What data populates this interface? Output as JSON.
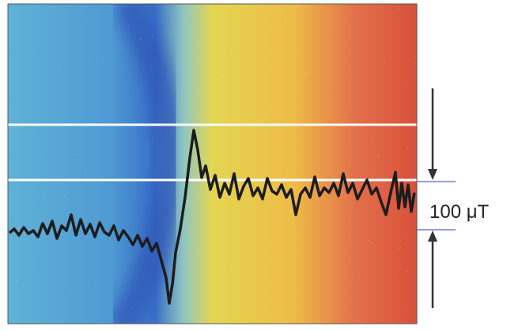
{
  "annotation": "100 μT"
}
